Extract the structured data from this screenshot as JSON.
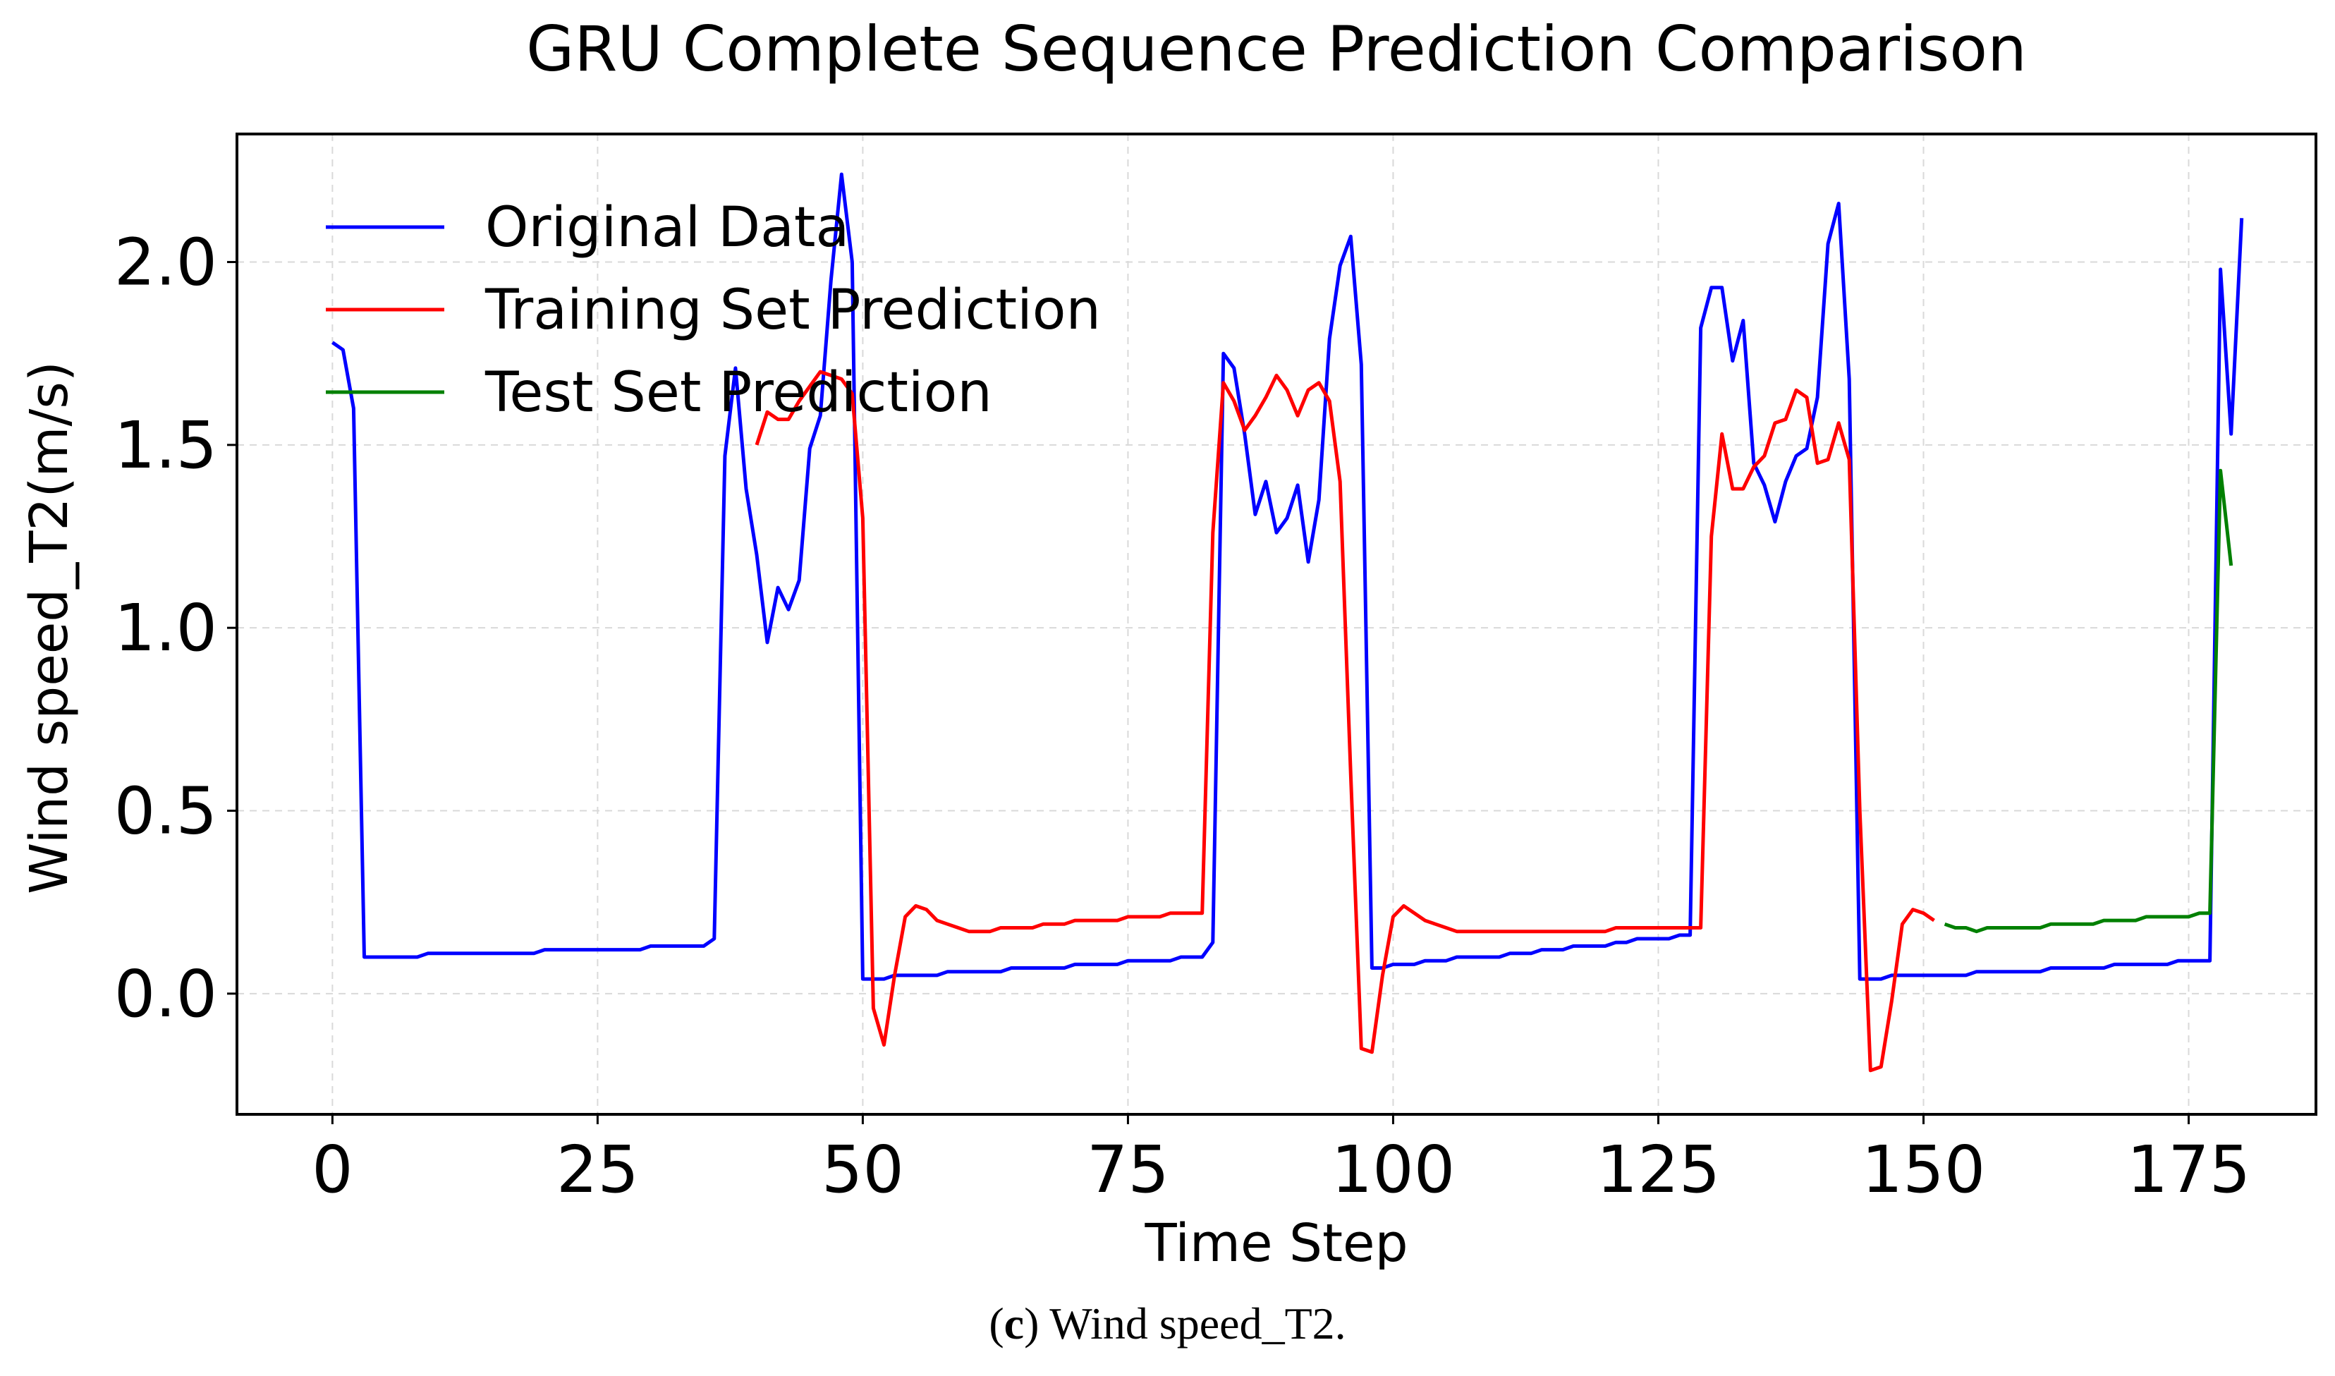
{
  "chart_data": {
    "type": "line",
    "title": "GRU Complete Sequence Prediction Comparison",
    "xlabel": "Time Step",
    "ylabel": "Wind speed_T2(m/s)",
    "xlim": [
      -9,
      187
    ],
    "ylim": [
      -0.33,
      2.35
    ],
    "xticks": [
      0,
      25,
      50,
      75,
      100,
      125,
      150,
      175
    ],
    "yticks": [
      0.0,
      0.5,
      1.0,
      1.5,
      2.0
    ],
    "ytick_labels": [
      "0.0",
      "0.5",
      "1.0",
      "1.5",
      "2.0"
    ],
    "grid": true,
    "legend_position": "top-left",
    "series": [
      {
        "name": "Original Data",
        "color": "#0000ff",
        "x_start": 0,
        "values": [
          1.78,
          1.76,
          1.6,
          0.1,
          0.1,
          0.1,
          0.1,
          0.1,
          0.1,
          0.11,
          0.11,
          0.11,
          0.11,
          0.11,
          0.11,
          0.11,
          0.11,
          0.11,
          0.11,
          0.11,
          0.12,
          0.12,
          0.12,
          0.12,
          0.12,
          0.12,
          0.12,
          0.12,
          0.12,
          0.12,
          0.13,
          0.13,
          0.13,
          0.13,
          0.13,
          0.13,
          0.15,
          1.47,
          1.71,
          1.38,
          1.2,
          0.96,
          1.11,
          1.05,
          1.13,
          1.49,
          1.58,
          1.95,
          2.24,
          2.0,
          0.04,
          0.04,
          0.04,
          0.05,
          0.05,
          0.05,
          0.05,
          0.05,
          0.06,
          0.06,
          0.06,
          0.06,
          0.06,
          0.06,
          0.07,
          0.07,
          0.07,
          0.07,
          0.07,
          0.07,
          0.08,
          0.08,
          0.08,
          0.08,
          0.08,
          0.09,
          0.09,
          0.09,
          0.09,
          0.09,
          0.1,
          0.1,
          0.1,
          0.14,
          1.75,
          1.71,
          1.53,
          1.31,
          1.4,
          1.26,
          1.3,
          1.39,
          1.18,
          1.35,
          1.79,
          1.99,
          2.07,
          1.72,
          0.07,
          0.07,
          0.08,
          0.08,
          0.08,
          0.09,
          0.09,
          0.09,
          0.1,
          0.1,
          0.1,
          0.1,
          0.1,
          0.11,
          0.11,
          0.11,
          0.12,
          0.12,
          0.12,
          0.13,
          0.13,
          0.13,
          0.13,
          0.14,
          0.14,
          0.15,
          0.15,
          0.15,
          0.15,
          0.16,
          0.16,
          1.82,
          1.93,
          1.93,
          1.73,
          1.84,
          1.45,
          1.39,
          1.29,
          1.4,
          1.47,
          1.49,
          1.63,
          2.05,
          2.16,
          1.68,
          0.04,
          0.04,
          0.04,
          0.05,
          0.05,
          0.05,
          0.05,
          0.05,
          0.05,
          0.05,
          0.05,
          0.06,
          0.06,
          0.06,
          0.06,
          0.06,
          0.06,
          0.06,
          0.07,
          0.07,
          0.07,
          0.07,
          0.07,
          0.07,
          0.08,
          0.08,
          0.08,
          0.08,
          0.08,
          0.08,
          0.09,
          0.09,
          0.09,
          0.09,
          1.98,
          1.53,
          2.12
        ]
      },
      {
        "name": "Training Set Prediction",
        "color": "#ff0000",
        "x_start": 40,
        "values": [
          1.5,
          1.59,
          1.57,
          1.57,
          1.62,
          1.66,
          1.7,
          1.69,
          1.68,
          1.64,
          1.3,
          -0.04,
          -0.14,
          0.05,
          0.21,
          0.24,
          0.23,
          0.2,
          0.19,
          0.18,
          0.17,
          0.17,
          0.17,
          0.18,
          0.18,
          0.18,
          0.18,
          0.19,
          0.19,
          0.19,
          0.2,
          0.2,
          0.2,
          0.2,
          0.2,
          0.21,
          0.21,
          0.21,
          0.21,
          0.22,
          0.22,
          0.22,
          0.22,
          1.26,
          1.67,
          1.62,
          1.54,
          1.58,
          1.63,
          1.69,
          1.65,
          1.58,
          1.65,
          1.67,
          1.62,
          1.4,
          0.6,
          -0.15,
          -0.16,
          0.05,
          0.21,
          0.24,
          0.22,
          0.2,
          0.19,
          0.18,
          0.17,
          0.17,
          0.17,
          0.17,
          0.17,
          0.17,
          0.17,
          0.17,
          0.17,
          0.17,
          0.17,
          0.17,
          0.17,
          0.17,
          0.17,
          0.18,
          0.18,
          0.18,
          0.18,
          0.18,
          0.18,
          0.18,
          0.18,
          0.18,
          1.25,
          1.53,
          1.38,
          1.38,
          1.44,
          1.47,
          1.56,
          1.57,
          1.65,
          1.63,
          1.45,
          1.46,
          1.56,
          1.46,
          0.5,
          -0.21,
          -0.2,
          -0.02,
          0.19,
          0.23,
          0.22,
          0.2
        ]
      },
      {
        "name": "Test Set Prediction",
        "color": "#008000",
        "x_start": 152,
        "values": [
          0.19,
          0.18,
          0.18,
          0.17,
          0.18,
          0.18,
          0.18,
          0.18,
          0.18,
          0.18,
          0.19,
          0.19,
          0.19,
          0.19,
          0.19,
          0.2,
          0.2,
          0.2,
          0.2,
          0.21,
          0.21,
          0.21,
          0.21,
          0.21,
          0.22,
          0.22,
          1.43,
          1.17
        ]
      }
    ]
  },
  "caption": {
    "label": "c",
    "text": " Wind speed_T2."
  }
}
